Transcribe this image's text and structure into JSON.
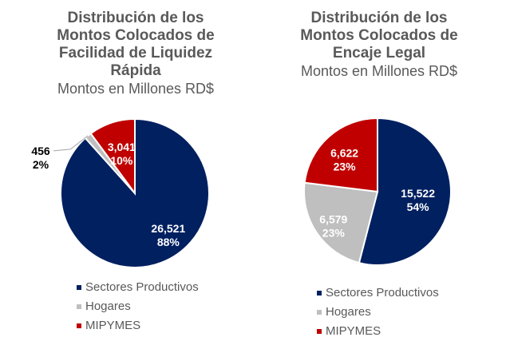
{
  "colors": {
    "sectores": "#002060",
    "hogares": "#bfbfbf",
    "mipymes": "#c00000",
    "title": "#595959"
  },
  "chart_data": [
    {
      "type": "pie",
      "title": "Distribución de los Montos Colocados de Facilidad de Liquidez Rápida",
      "title_lines": [
        "Distribución de los",
        "Montos Colocados de",
        "Facilidad de Liquidez",
        "Rápida"
      ],
      "subtitle": "Montos en Millones RD$",
      "categories": [
        "Sectores Productivos",
        "Hogares",
        "MIPYMES"
      ],
      "values": [
        26521,
        456,
        3041
      ],
      "value_labels": [
        "26,521",
        "456",
        "3,041"
      ],
      "percent_labels": [
        "88%",
        "2%",
        "10%"
      ],
      "legend": [
        "Sectores Productivos",
        "Hogares",
        "MIPYMES"
      ],
      "legend_position": "bottom"
    },
    {
      "type": "pie",
      "title": "Distribución de los Montos Colocados de Encaje Legal",
      "title_lines": [
        "Distribución de los",
        "Montos Colocados de",
        "Encaje Legal"
      ],
      "subtitle": "Montos en Millones RD$",
      "categories": [
        "Sectores Productivos",
        "Hogares",
        "MIPYMES"
      ],
      "values": [
        15522,
        6579,
        6622
      ],
      "value_labels": [
        "15,522",
        "6,579",
        "6,622"
      ],
      "percent_labels": [
        "54%",
        "23%",
        "23%"
      ],
      "legend": [
        "Sectores Productivos",
        "Hogares",
        "MIPYMES"
      ],
      "legend_position": "bottom"
    }
  ]
}
